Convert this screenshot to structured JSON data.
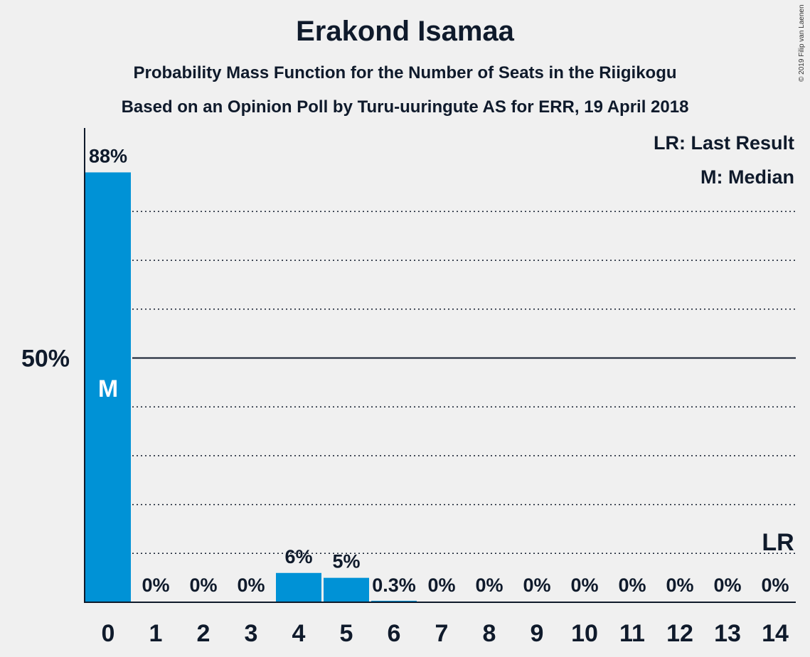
{
  "title": "Erakond Isamaa",
  "subtitle": "Probability Mass Function for the Number of Seats in the Riigikogu",
  "subtitle2": "Based on an Opinion Poll by Turu-uuringute AS for ERR, 19 April 2018",
  "copyright": "© 2019 Filip van Laenen",
  "legend": {
    "last_result": "LR: Last Result",
    "median": "M: Median"
  },
  "colors": {
    "bar": "#0092d6",
    "text": "#0f1a2b",
    "background": "#f0f0f0"
  },
  "chart_data": {
    "type": "bar",
    "categories": [
      "0",
      "1",
      "2",
      "3",
      "4",
      "5",
      "6",
      "7",
      "8",
      "9",
      "10",
      "11",
      "12",
      "13",
      "14"
    ],
    "values": [
      88,
      0,
      0,
      0,
      6,
      5,
      0.3,
      0,
      0,
      0,
      0,
      0,
      0,
      0,
      0
    ],
    "value_labels": [
      "88%",
      "0%",
      "0%",
      "0%",
      "6%",
      "5%",
      "0.3%",
      "0%",
      "0%",
      "0%",
      "0%",
      "0%",
      "0%",
      "0%",
      "0%"
    ],
    "ylim": [
      0,
      100
    ],
    "y_tick_label": "50%",
    "y_tick_value": 50,
    "dotted_gridlines": [
      10,
      20,
      30,
      40,
      60,
      70,
      80
    ],
    "median_seat": "0",
    "median_marker": "M",
    "last_result_seat": "14",
    "last_result_marker": "LR",
    "grid": true,
    "legend_position": "top-right"
  }
}
